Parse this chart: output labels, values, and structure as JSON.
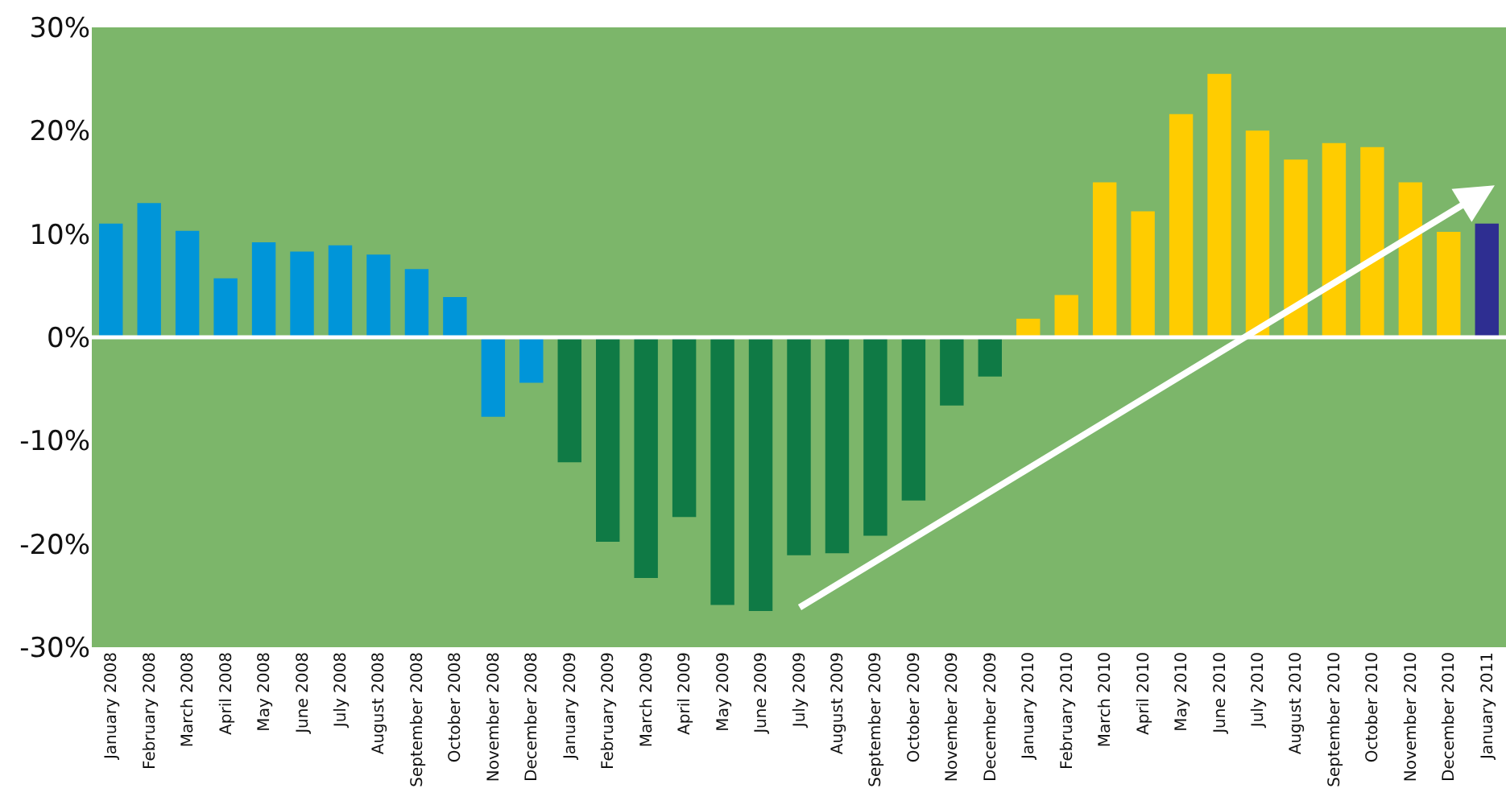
{
  "chart_data": {
    "type": "bar",
    "categories": [
      "January 2008",
      "February 2008",
      "March 2008",
      "April 2008",
      "May 2008",
      "June 2008",
      "July 2008",
      "August 2008",
      "September 2008",
      "October 2008",
      "November 2008",
      "December 2008",
      "January 2009",
      "February 2009",
      "March 2009",
      "April 2009",
      "May 2009",
      "June 2009",
      "July 2009",
      "August 2009",
      "September 2009",
      "October 2009",
      "November 2009",
      "December 2009",
      "January 2010",
      "February 2010",
      "March 2010",
      "April 2010",
      "May 2010",
      "June 2010",
      "July 2010",
      "August 2010",
      "September 2010",
      "October 2010",
      "November 2010",
      "December 2010",
      "January 2011"
    ],
    "values": [
      11.0,
      13.0,
      10.3,
      5.7,
      9.2,
      8.3,
      8.9,
      8.0,
      6.6,
      3.9,
      -7.7,
      -4.4,
      -12.1,
      -19.8,
      -23.3,
      -17.4,
      -25.9,
      -26.5,
      -21.1,
      -20.9,
      -19.2,
      -15.8,
      -6.6,
      -3.8,
      1.8,
      4.1,
      15.0,
      12.2,
      21.6,
      25.5,
      20.0,
      17.2,
      18.8,
      18.4,
      15.0,
      10.2,
      11.0
    ],
    "colors": [
      "#0095d9",
      "#0095d9",
      "#0095d9",
      "#0095d9",
      "#0095d9",
      "#0095d9",
      "#0095d9",
      "#0095d9",
      "#0095d9",
      "#0095d9",
      "#0095d9",
      "#0095d9",
      "#0f7a45",
      "#0f7a45",
      "#0f7a45",
      "#0f7a45",
      "#0f7a45",
      "#0f7a45",
      "#0f7a45",
      "#0f7a45",
      "#0f7a45",
      "#0f7a45",
      "#0f7a45",
      "#0f7a45",
      "#ffcc00",
      "#ffcc00",
      "#ffcc00",
      "#ffcc00",
      "#ffcc00",
      "#ffcc00",
      "#ffcc00",
      "#ffcc00",
      "#ffcc00",
      "#ffcc00",
      "#ffcc00",
      "#ffcc00",
      "#2e2e91"
    ],
    "ylim": [
      -30,
      30
    ],
    "yticks": [
      {
        "value": 30,
        "label": "30%"
      },
      {
        "value": 20,
        "label": "20%"
      },
      {
        "value": 10,
        "label": "10%"
      },
      {
        "value": 0,
        "label": "0%"
      },
      {
        "value": -10,
        "label": "-10%"
      },
      {
        "value": -20,
        "label": "-20%"
      },
      {
        "value": -30,
        "label": "-30%"
      }
    ],
    "ref_lines": [
      {
        "axis": "y",
        "value": 0,
        "color": "#ffffff"
      }
    ],
    "grid": false
  }
}
